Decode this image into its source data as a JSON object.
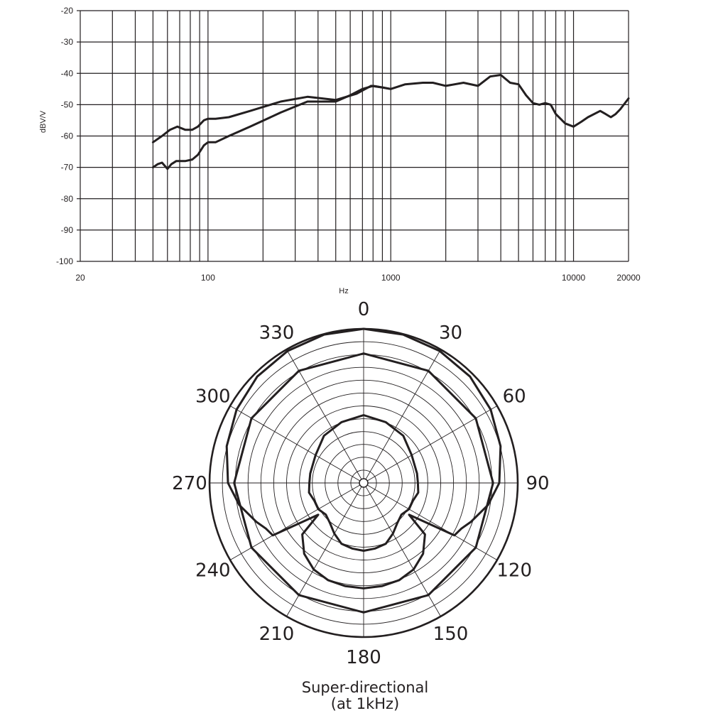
{
  "chart_data": [
    {
      "type": "line",
      "x_scale": "log",
      "xlabel": "Hz",
      "ylabel": "dBV/V",
      "xlim": [
        20,
        20000
      ],
      "ylim": [
        -100,
        -20
      ],
      "grid": true,
      "x_ticks": [
        "20",
        "100",
        "1000",
        "10000",
        "20000"
      ],
      "y_ticks": [
        "-20",
        "-30",
        "-40",
        "-50",
        "-60",
        "-70",
        "-80",
        "-90",
        "-100"
      ],
      "series": [
        {
          "x": [
            50,
            56,
            62,
            68,
            75,
            82,
            88,
            95,
            100,
            110,
            130,
            170,
            250,
            350,
            500,
            650,
            780,
            900,
            1000,
            1200,
            1500,
            1700,
            2000,
            2500,
            3000,
            3500,
            4000,
            4500,
            5000,
            5500,
            6000,
            6500,
            7000,
            7500,
            8000,
            9000,
            10000,
            11000,
            12000,
            14000,
            15000,
            16000,
            17000,
            18000,
            20000
          ],
          "values": [
            -62,
            -60,
            -58,
            -57,
            -58,
            -58,
            -57,
            -55,
            -54.5,
            -54.5,
            -54,
            -52,
            -49,
            -47.5,
            -48.5,
            -46.5,
            -44,
            -44.5,
            -45,
            -43.5,
            -43,
            -43,
            -44,
            -43,
            -44,
            -41,
            -40.5,
            -43,
            -43.5,
            -47,
            -49.5,
            -50,
            -49.5,
            -50,
            -53,
            -56,
            -57,
            -55.5,
            -54,
            -52,
            -53,
            -54,
            -53,
            -51.5,
            -48
          ]
        },
        {
          "x": [
            50,
            53,
            56,
            60,
            63,
            67,
            75,
            82,
            88,
            95,
            100,
            110,
            130,
            170,
            250,
            350,
            500,
            600,
            700,
            800,
            900,
            1000
          ],
          "values": [
            -70,
            -69,
            -68.5,
            -70.5,
            -69,
            -68,
            -68,
            -67.5,
            -66,
            -63,
            -62,
            -62,
            -60,
            -57,
            -52.5,
            -49,
            -49,
            -47,
            -45,
            -44,
            -44.5,
            -45
          ]
        }
      ]
    },
    {
      "type": "polar",
      "angle_labels": [
        "0",
        "30",
        "60",
        "90",
        "120",
        "150",
        "180",
        "210",
        "240",
        "270",
        "300",
        "330"
      ],
      "rlim_db": [
        -25,
        0
      ],
      "caption_line1": "Super-directional",
      "caption_line2": "(at 1kHz)",
      "series": [
        {
          "theta": [
            0,
            15,
            30,
            45,
            60,
            75,
            90,
            100,
            110,
            115,
            120,
            125,
            130,
            140,
            150,
            160,
            170,
            180
          ],
          "values_db": [
            0,
            -0.1,
            -0.3,
            -0.6,
            -1.2,
            -2,
            -3,
            -4.5,
            -6.5,
            -7.5,
            -8,
            -16,
            -12,
            -10,
            -8.8,
            -8.2,
            -8,
            -7.9
          ]
        },
        {
          "theta": [
            0,
            30,
            60,
            90,
            120,
            150,
            180
          ],
          "values_db": [
            -4,
            -4,
            -4,
            -4,
            -4,
            -4,
            -4
          ]
        },
        {
          "theta": [
            0,
            20,
            40,
            60,
            80,
            90,
            100,
            110,
            120,
            130,
            140,
            150,
            160,
            170,
            180
          ],
          "values_db": [
            -14,
            -14.5,
            -15,
            -16,
            -16.2,
            -16.2,
            -16,
            -16.5,
            -16.5,
            -17,
            -16.5,
            -15.5,
            -14.5,
            -14.2,
            -14
          ]
        }
      ]
    }
  ]
}
